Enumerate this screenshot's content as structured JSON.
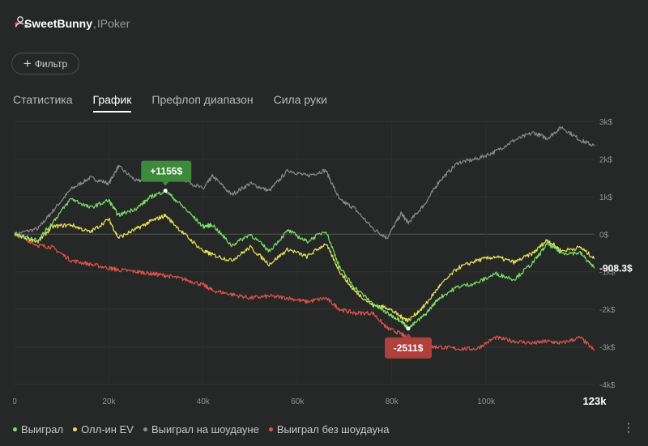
{
  "header": {
    "player_name": "SweetBunny",
    "separator": ",",
    "room": "IPoker"
  },
  "filter": {
    "label": "Фильтр"
  },
  "tabs": [
    {
      "label": "Статистика",
      "active": false
    },
    {
      "label": "График",
      "active": true
    },
    {
      "label": "Префлоп диапазон",
      "active": false
    },
    {
      "label": "Сила руки",
      "active": false
    }
  ],
  "colors": {
    "won": "#7ee06a",
    "allin_ev": "#e8e25a",
    "showdown": "#8a8a8a",
    "non_showdown": "#e0524a",
    "max_badge": "#3d8a3a",
    "min_badge": "#b0403c"
  },
  "chart_data": {
    "type": "line",
    "x_ticks": [
      "0",
      "20k",
      "40k",
      "60k",
      "80k",
      "100k"
    ],
    "x_max_label": "123k",
    "y_ticks": [
      "3k$",
      "2k$",
      "1k$",
      "0$",
      "-1k$",
      "-2k$",
      "-3k$",
      "-4k$"
    ],
    "xlim": [
      0,
      123000
    ],
    "ylim": [
      -4000,
      3000
    ],
    "current_value_label": "-908.3$",
    "max_label": "+1155$",
    "min_label": "-2511$",
    "series": [
      {
        "name": "Выиграл",
        "points": [
          [
            0,
            0
          ],
          [
            5000,
            -150
          ],
          [
            8000,
            300
          ],
          [
            12000,
            950
          ],
          [
            16000,
            700
          ],
          [
            20000,
            900
          ],
          [
            22000,
            500
          ],
          [
            26000,
            700
          ],
          [
            29000,
            1000
          ],
          [
            32000,
            1155
          ],
          [
            36000,
            700
          ],
          [
            40000,
            200
          ],
          [
            42000,
            250
          ],
          [
            46000,
            -300
          ],
          [
            50000,
            0
          ],
          [
            54000,
            -450
          ],
          [
            58000,
            100
          ],
          [
            62000,
            -200
          ],
          [
            66000,
            100
          ],
          [
            69000,
            -900
          ],
          [
            72000,
            -1400
          ],
          [
            76000,
            -1850
          ],
          [
            79000,
            -2100
          ],
          [
            82000,
            -2300
          ],
          [
            83500,
            -2511
          ],
          [
            87000,
            -2150
          ],
          [
            90000,
            -1700
          ],
          [
            94000,
            -1400
          ],
          [
            98000,
            -1300
          ],
          [
            102000,
            -1050
          ],
          [
            106000,
            -1200
          ],
          [
            110000,
            -750
          ],
          [
            113000,
            -250
          ],
          [
            116000,
            -500
          ],
          [
            120000,
            -500
          ],
          [
            123000,
            -908.3
          ]
        ]
      },
      {
        "name": "Олл-ин EV",
        "points": [
          [
            0,
            0
          ],
          [
            5000,
            -200
          ],
          [
            8000,
            200
          ],
          [
            12000,
            250
          ],
          [
            16000,
            50
          ],
          [
            20000,
            400
          ],
          [
            22000,
            -100
          ],
          [
            26000,
            150
          ],
          [
            29000,
            350
          ],
          [
            32000,
            500
          ],
          [
            36000,
            0
          ],
          [
            40000,
            -450
          ],
          [
            42000,
            -550
          ],
          [
            46000,
            -700
          ],
          [
            50000,
            -350
          ],
          [
            54000,
            -800
          ],
          [
            58000,
            -400
          ],
          [
            62000,
            -600
          ],
          [
            66000,
            -250
          ],
          [
            69000,
            -1000
          ],
          [
            72000,
            -1500
          ],
          [
            76000,
            -1900
          ],
          [
            79000,
            -1950
          ],
          [
            82000,
            -2200
          ],
          [
            83500,
            -2300
          ],
          [
            87000,
            -1900
          ],
          [
            90000,
            -1400
          ],
          [
            94000,
            -900
          ],
          [
            98000,
            -700
          ],
          [
            102000,
            -600
          ],
          [
            106000,
            -750
          ],
          [
            110000,
            -500
          ],
          [
            113000,
            -150
          ],
          [
            116000,
            -450
          ],
          [
            120000,
            -350
          ],
          [
            123000,
            -650
          ]
        ]
      },
      {
        "name": "Выиграл на шоудауне",
        "points": [
          [
            0,
            0
          ],
          [
            5000,
            150
          ],
          [
            8000,
            600
          ],
          [
            12000,
            1200
          ],
          [
            16000,
            1500
          ],
          [
            20000,
            1350
          ],
          [
            22000,
            1800
          ],
          [
            26000,
            1400
          ],
          [
            29000,
            1550
          ],
          [
            32000,
            1700
          ],
          [
            36000,
            1450
          ],
          [
            40000,
            1200
          ],
          [
            42000,
            1550
          ],
          [
            46000,
            1050
          ],
          [
            50000,
            1350
          ],
          [
            54000,
            1150
          ],
          [
            58000,
            1700
          ],
          [
            62000,
            1550
          ],
          [
            66000,
            1700
          ],
          [
            69000,
            900
          ],
          [
            72000,
            700
          ],
          [
            76000,
            150
          ],
          [
            79000,
            -100
          ],
          [
            82000,
            550
          ],
          [
            83500,
            300
          ],
          [
            87000,
            800
          ],
          [
            90000,
            1400
          ],
          [
            94000,
            1900
          ],
          [
            98000,
            2000
          ],
          [
            102000,
            2200
          ],
          [
            106000,
            2500
          ],
          [
            110000,
            2700
          ],
          [
            113000,
            2550
          ],
          [
            116000,
            2850
          ],
          [
            120000,
            2500
          ],
          [
            123000,
            2350
          ]
        ]
      },
      {
        "name": "Выиграл без шоудауна",
        "points": [
          [
            0,
            0
          ],
          [
            5000,
            -300
          ],
          [
            8000,
            -350
          ],
          [
            12000,
            -700
          ],
          [
            16000,
            -800
          ],
          [
            20000,
            -900
          ],
          [
            22000,
            -950
          ],
          [
            26000,
            -1000
          ],
          [
            29000,
            -1050
          ],
          [
            32000,
            -1100
          ],
          [
            36000,
            -1200
          ],
          [
            40000,
            -1350
          ],
          [
            42000,
            -1500
          ],
          [
            46000,
            -1600
          ],
          [
            50000,
            -1700
          ],
          [
            54000,
            -1650
          ],
          [
            58000,
            -1700
          ],
          [
            62000,
            -1800
          ],
          [
            66000,
            -1700
          ],
          [
            69000,
            -2000
          ],
          [
            72000,
            -2100
          ],
          [
            76000,
            -2100
          ],
          [
            79000,
            -2500
          ],
          [
            82000,
            -2650
          ],
          [
            83500,
            -2800
          ],
          [
            87000,
            -3000
          ],
          [
            90000,
            -3000
          ],
          [
            94000,
            -3050
          ],
          [
            98000,
            -3050
          ],
          [
            102000,
            -2750
          ],
          [
            106000,
            -2850
          ],
          [
            110000,
            -2900
          ],
          [
            113000,
            -2850
          ],
          [
            116000,
            -2900
          ],
          [
            120000,
            -2750
          ],
          [
            123000,
            -3100
          ]
        ]
      }
    ]
  }
}
